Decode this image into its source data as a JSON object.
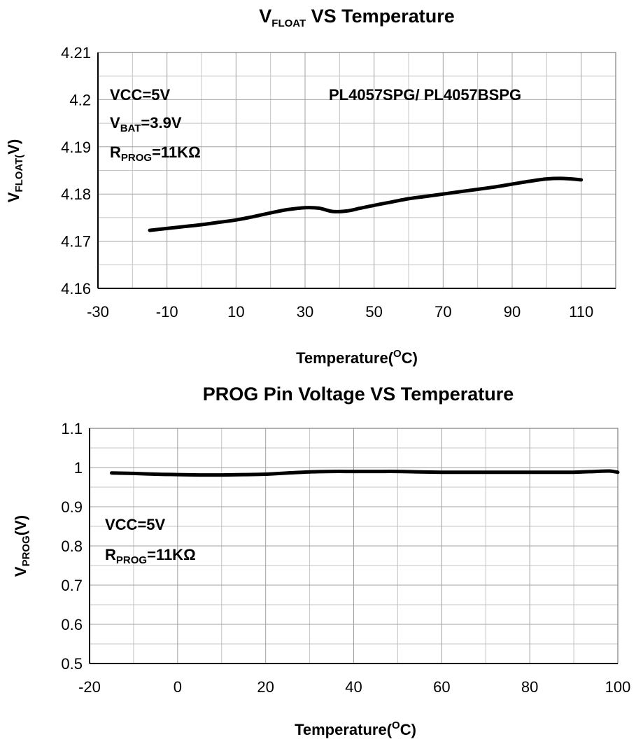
{
  "chart_data": [
    {
      "type": "line",
      "title": {
        "main": "V",
        "sub": "FLOAT",
        "rest": " VS Temperature"
      },
      "xlabel": "Temperature(°C)",
      "xlabel_parts": {
        "pre": "Temperature(",
        "sup": "O",
        "post": "C)"
      },
      "ylabel": {
        "main": "V",
        "sub": "FLOAT(",
        "rest": "V)"
      },
      "xlim": [
        -30,
        120
      ],
      "ylim": [
        4.16,
        4.21
      ],
      "xticks": [
        -30,
        -10,
        10,
        30,
        50,
        70,
        90,
        110
      ],
      "xtick_labels": [
        "-30",
        "-10",
        "10",
        "30",
        "50",
        "70",
        "90",
        "110"
      ],
      "yticks": [
        4.16,
        4.17,
        4.18,
        4.19,
        4.2,
        4.21
      ],
      "ytick_labels": [
        "4.16",
        "4.17",
        "4.18",
        "4.19",
        "4.2",
        "4.21"
      ],
      "grid": true,
      "annotations": {
        "vcc": "VCC=5V",
        "vbat": {
          "main": "V",
          "sub": "BAT",
          "rest": "=3.9V"
        },
        "rprog": {
          "main": "R",
          "sub": "PROG",
          "rest": "=11KΩ"
        },
        "part": "PL4057SPG/  PL4057BSPG"
      },
      "series": [
        {
          "x": [
            -15,
            -10,
            -5,
            0,
            5,
            10,
            15,
            20,
            25,
            30,
            34,
            38,
            42,
            46,
            50,
            55,
            60,
            65,
            70,
            75,
            80,
            85,
            90,
            95,
            100,
            105,
            110
          ],
          "y": [
            4.1723,
            4.1727,
            4.1731,
            4.1735,
            4.174,
            4.1745,
            4.1752,
            4.176,
            4.1767,
            4.1771,
            4.177,
            4.1763,
            4.1764,
            4.177,
            4.1776,
            4.1783,
            4.179,
            4.1795,
            4.18,
            4.1805,
            4.181,
            4.1815,
            4.1821,
            4.1827,
            4.1832,
            4.1833,
            4.183
          ]
        }
      ]
    },
    {
      "type": "line",
      "title": "PROG Pin Voltage VS Temperature",
      "xlabel": "Temperature(°C)",
      "xlabel_parts": {
        "pre": "Temperature(",
        "sup": "O",
        "post": "C)"
      },
      "ylabel": {
        "main": "V",
        "sub": "PROG",
        "rest": "(V)"
      },
      "xlim": [
        -20,
        100
      ],
      "ylim": [
        0.5,
        1.1
      ],
      "xticks": [
        -20,
        0,
        20,
        40,
        60,
        80,
        100
      ],
      "xtick_labels": [
        "-20",
        "0",
        "20",
        "40",
        "60",
        "80",
        "100"
      ],
      "yticks": [
        0.5,
        0.6,
        0.7,
        0.8,
        0.9,
        1,
        1.1
      ],
      "ytick_labels": [
        "0.5",
        "0.6",
        "0.7",
        "0.8",
        "0.9",
        "1",
        "1.1"
      ],
      "grid": true,
      "annotations": {
        "vcc": "VCC=5V",
        "rprog": {
          "main": "R",
          "sub": "PROG",
          "rest": "=11KΩ"
        }
      },
      "series": [
        {
          "x": [
            -15,
            -10,
            -5,
            0,
            5,
            10,
            15,
            20,
            25,
            30,
            35,
            40,
            45,
            50,
            55,
            60,
            65,
            70,
            75,
            80,
            85,
            90,
            95,
            98,
            100
          ],
          "y": [
            0.986,
            0.985,
            0.983,
            0.982,
            0.981,
            0.981,
            0.982,
            0.983,
            0.986,
            0.989,
            0.99,
            0.99,
            0.99,
            0.99,
            0.989,
            0.988,
            0.988,
            0.988,
            0.988,
            0.988,
            0.988,
            0.988,
            0.99,
            0.991,
            0.988
          ]
        }
      ]
    }
  ]
}
